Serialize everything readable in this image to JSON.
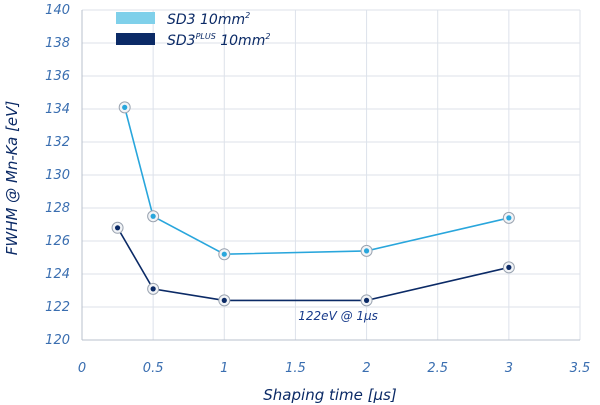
{
  "chart_data": {
    "type": "line",
    "xlabel": "Shaping time [µs]",
    "ylabel": "FWHM @ Mn-Ka [eV]",
    "xlim": [
      0,
      3.5
    ],
    "ylim": [
      120,
      140
    ],
    "x_ticks": [
      "0",
      "0.5",
      "1",
      "1.5",
      "2",
      "2.5",
      "3",
      "3.5"
    ],
    "y_ticks": [
      "120",
      "122",
      "124",
      "126",
      "128",
      "130",
      "132",
      "134",
      "136",
      "138",
      "140"
    ],
    "grid": true,
    "legend_position": "top-left",
    "series": [
      {
        "name": "SD3 10mm",
        "legend_sup": "2",
        "color": "#29a6dc",
        "legend_color": "#7fd0ea",
        "x": [
          0.3,
          0.5,
          1,
          2,
          3
        ],
        "y": [
          134.1,
          127.5,
          125.2,
          125.4,
          127.4
        ]
      },
      {
        "name": "SD3",
        "legend_mid_sup": "PLUS",
        "legend_suffix": " 10mm",
        "legend_sup": "2",
        "color": "#0b2a66",
        "legend_color": "#0b2a66",
        "x": [
          0.25,
          0.5,
          1,
          2,
          3
        ],
        "y": [
          126.8,
          123.1,
          122.4,
          122.4,
          124.4
        ]
      }
    ],
    "annotations": [
      {
        "text": "122eV @ 1µs",
        "x": 1.8,
        "y": 121.2
      }
    ]
  }
}
